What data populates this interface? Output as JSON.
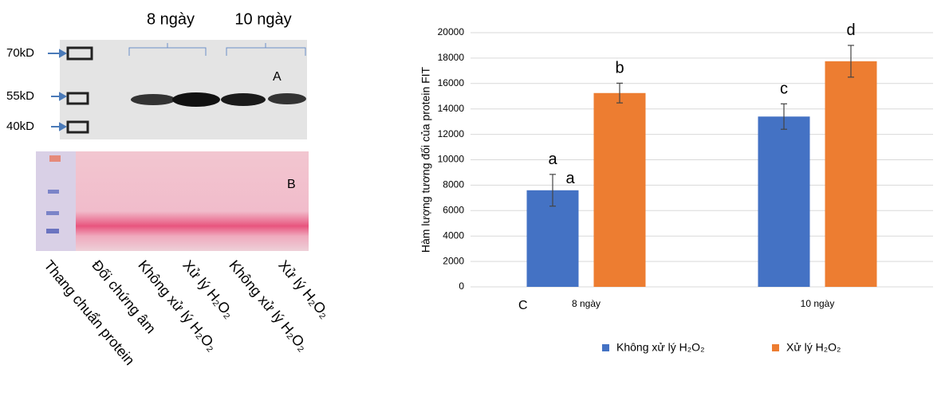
{
  "blot": {
    "days": [
      "8 ngày",
      "10 ngày"
    ],
    "markers": [
      "70kD",
      "55kD",
      "40kD"
    ],
    "panel_a": "A",
    "panel_b": "B",
    "lanes": [
      "Thang chuẩn protein",
      "Đối chứng âm",
      "Không xử lý H₂O₂",
      "Xử lý H₂O₂",
      "Không xử lý H₂O₂",
      "Xử lý H₂O₂"
    ]
  },
  "chart_data": {
    "type": "bar",
    "panel": "C",
    "y_label": "Hàm lượng tương đối của protein FIT",
    "categories": [
      "8 ngày",
      "10 ngày"
    ],
    "series": [
      {
        "name": "Không xử lý H₂O₂",
        "color": "#4472c4",
        "values": [
          7600,
          13400
        ],
        "errors": [
          1250,
          1000
        ],
        "letters": [
          [
            "a",
            "a"
          ],
          [
            "c"
          ]
        ]
      },
      {
        "name": "Xử lý H₂O₂",
        "color": "#ed7d31",
        "values": [
          15250,
          17750
        ],
        "errors": [
          775,
          1250
        ],
        "letters": [
          [
            "b"
          ],
          [
            "d"
          ]
        ]
      }
    ],
    "ylim": [
      0,
      20000
    ],
    "yticks": [
      0,
      2000,
      4000,
      6000,
      8000,
      10000,
      12000,
      14000,
      16000,
      18000,
      20000
    ],
    "grid": true
  }
}
